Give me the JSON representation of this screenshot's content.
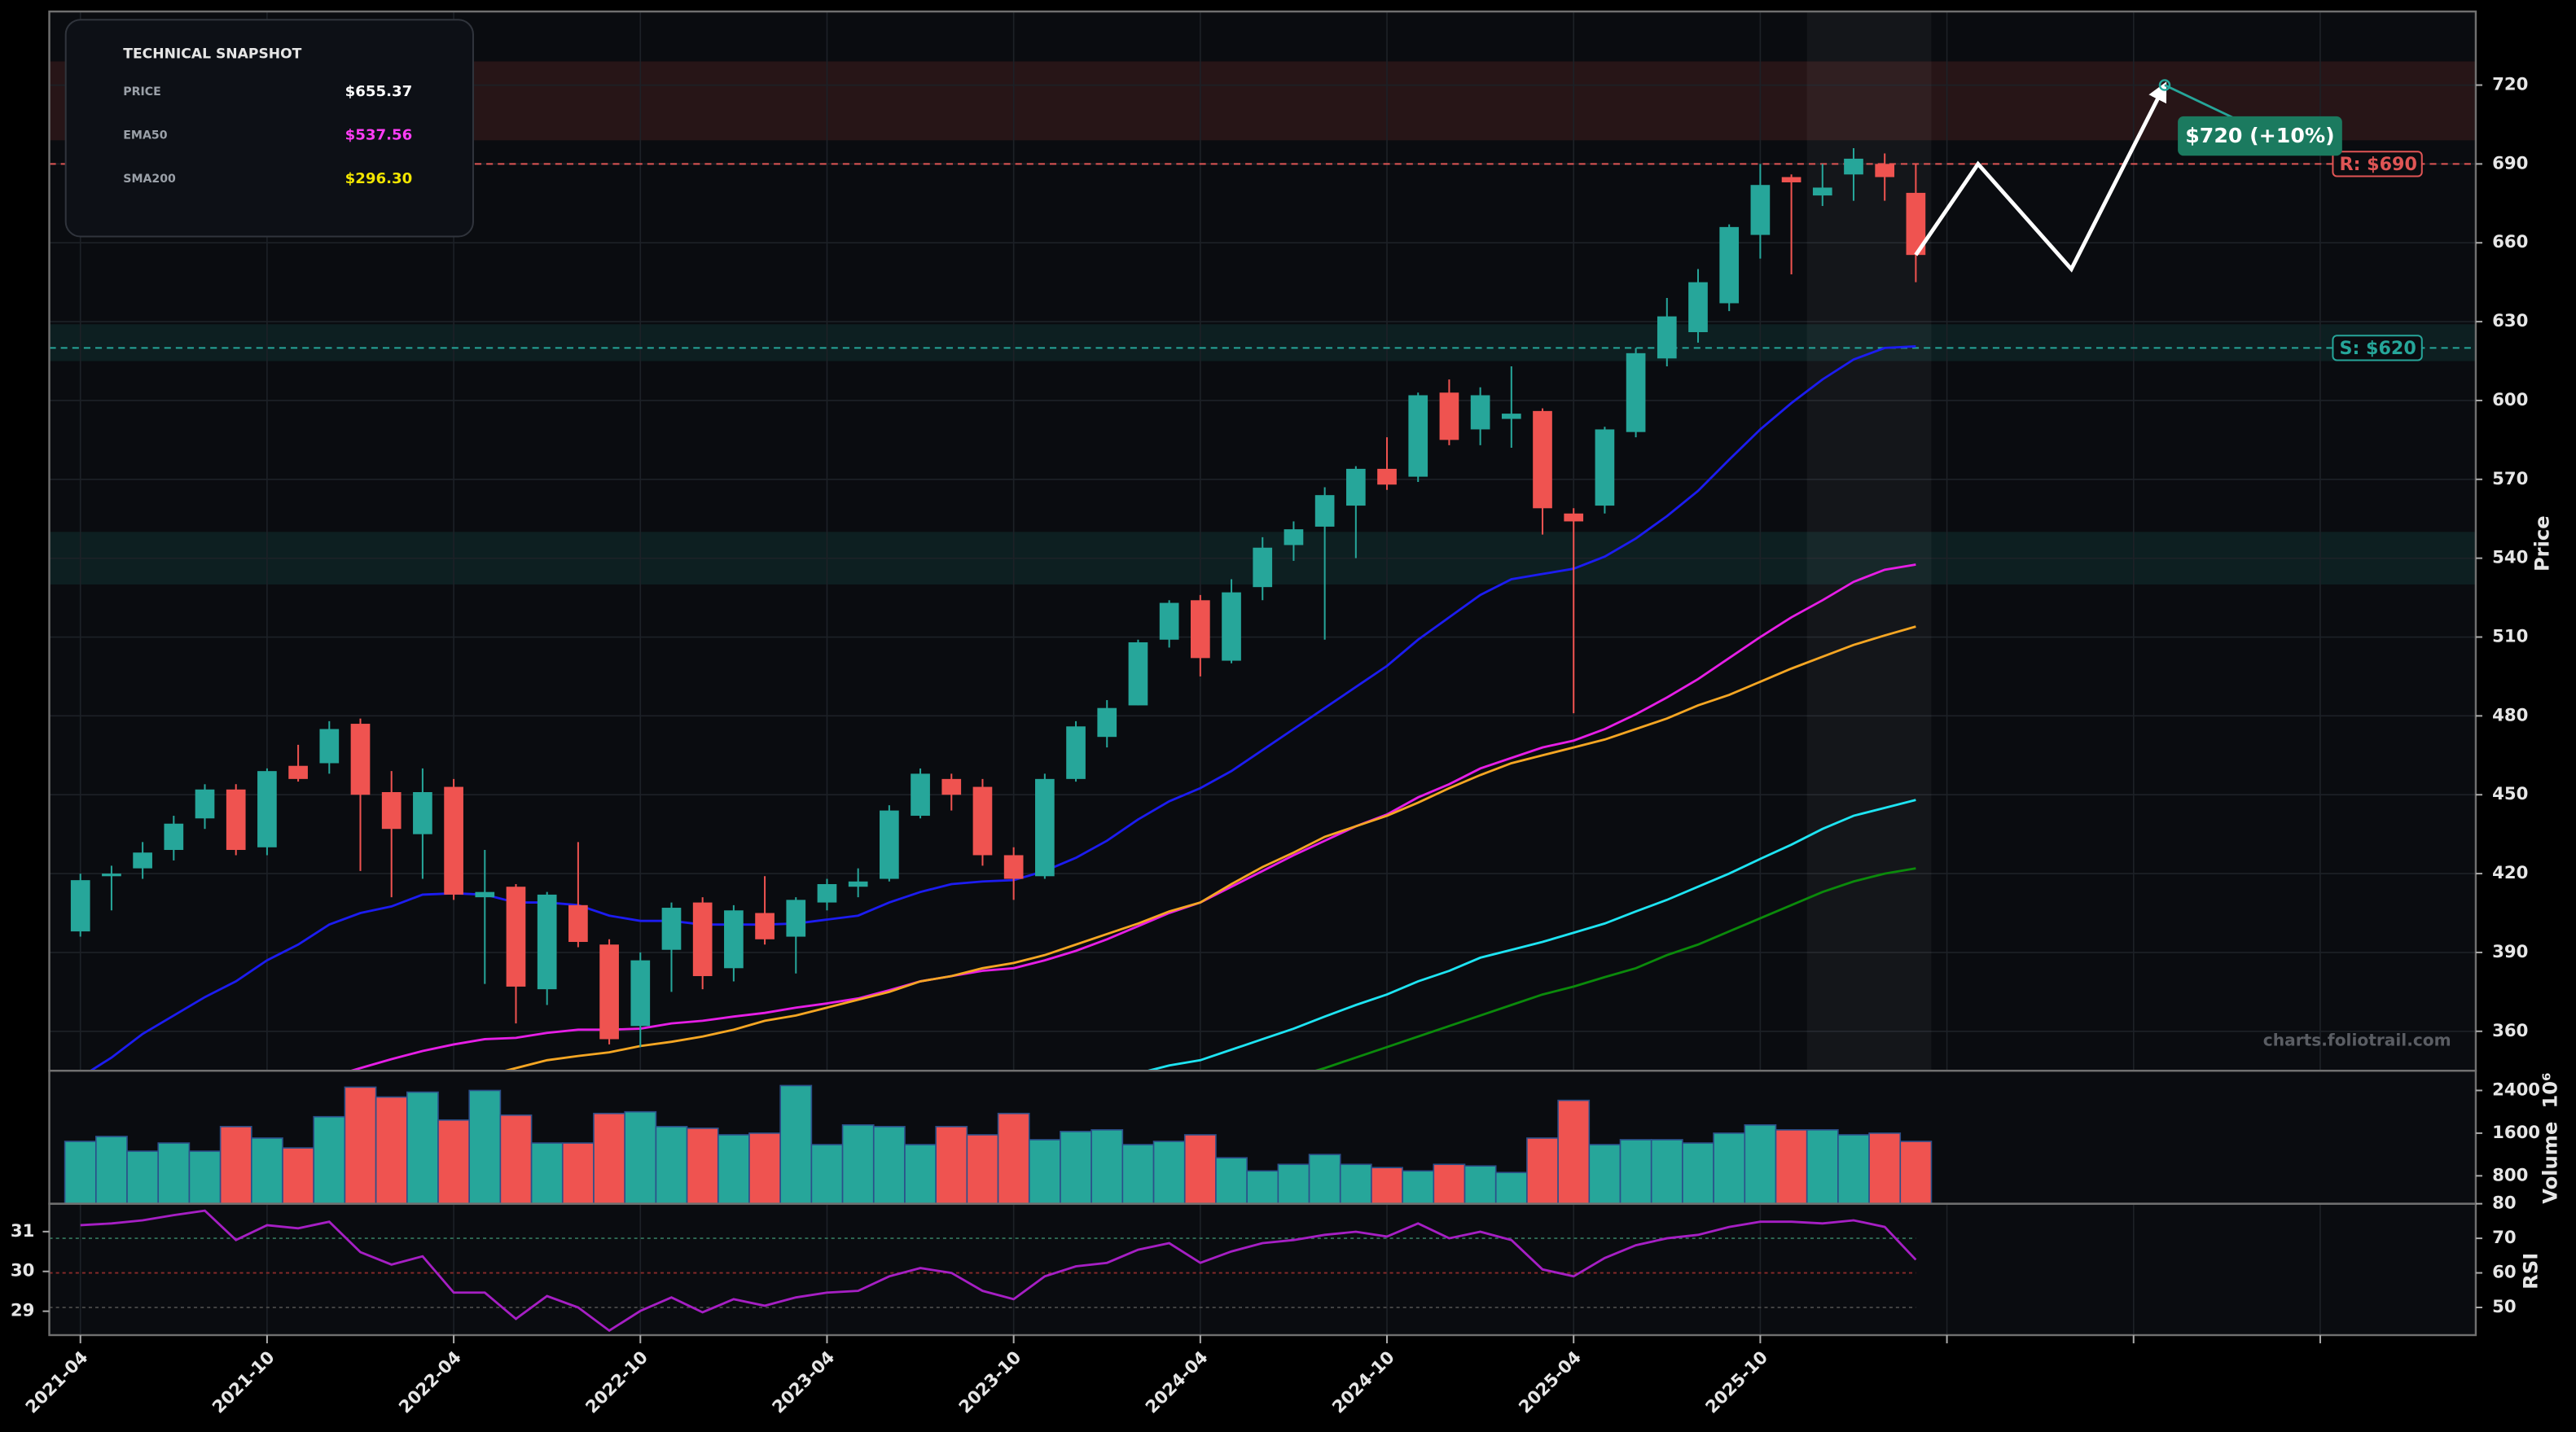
{
  "chart_data": {
    "type": "candlestick",
    "snapshot": {
      "title": "TECHNICAL SNAPSHOT",
      "rows": [
        {
          "label": "PRICE",
          "value": "$655.37",
          "color": "#ffffff"
        },
        {
          "label": "EMA50",
          "value": "$537.56",
          "color": "#ff3df5"
        },
        {
          "label": "SMA200",
          "value": "$296.30",
          "color": "#f2e500"
        }
      ]
    },
    "x": [
      "2021-04",
      "2021-05",
      "2021-06",
      "2021-07",
      "2021-08",
      "2021-09",
      "2021-10",
      "2021-11",
      "2021-12",
      "2022-01",
      "2022-02",
      "2022-03",
      "2022-04",
      "2022-05",
      "2022-06",
      "2022-07",
      "2022-08",
      "2022-09",
      "2022-10",
      "2022-11",
      "2022-12",
      "2023-01",
      "2023-02",
      "2023-03",
      "2023-04",
      "2023-05",
      "2023-06",
      "2023-07",
      "2023-08",
      "2023-09",
      "2023-10",
      "2023-11",
      "2023-12",
      "2024-01",
      "2024-02",
      "2024-03",
      "2024-04",
      "2024-05",
      "2024-06",
      "2024-07",
      "2024-08",
      "2024-09",
      "2024-10",
      "2024-11",
      "2024-12",
      "2025-01",
      "2025-02",
      "2025-03",
      "2025-04",
      "2025-05",
      "2025-06",
      "2025-07",
      "2025-08",
      "2025-09",
      "2025-10",
      "2025-11",
      "2025-12",
      "2026-01",
      "2026-02",
      "2026-03"
    ],
    "open": [
      398,
      419,
      422,
      429,
      441,
      452,
      430,
      461,
      462,
      477,
      451,
      435,
      453,
      411,
      415,
      376,
      408,
      393,
      362,
      391,
      409,
      384,
      405,
      396,
      409,
      415,
      418,
      442,
      456,
      453,
      427,
      419,
      456,
      472,
      484,
      509,
      524,
      501,
      529,
      545,
      552,
      560,
      574,
      571,
      603,
      589,
      593,
      596,
      557,
      560,
      588,
      616,
      626,
      637,
      663,
      685,
      678,
      686,
      690,
      679
    ],
    "high": [
      420,
      423,
      432,
      442,
      454,
      454,
      460,
      469,
      478,
      479,
      459,
      460,
      456,
      429,
      416,
      413,
      432,
      395,
      390,
      409,
      411,
      408,
      419,
      411,
      418,
      422,
      446,
      460,
      458,
      456,
      430,
      458,
      478,
      486,
      509,
      524,
      526,
      532,
      548,
      554,
      567,
      575,
      586,
      603,
      608,
      605,
      613,
      597,
      559,
      590,
      620,
      639,
      650,
      667,
      690,
      686,
      690,
      696,
      694,
      690
    ],
    "low": [
      396,
      406,
      418,
      425,
      437,
      427,
      427,
      455,
      458,
      421,
      411,
      418,
      410,
      378,
      363,
      370,
      392,
      355,
      354,
      375,
      376,
      379,
      393,
      382,
      406,
      411,
      417,
      441,
      444,
      423,
      410,
      418,
      455,
      468,
      484,
      506,
      495,
      500,
      524,
      539,
      509,
      540,
      566,
      569,
      583,
      583,
      582,
      549,
      481,
      557,
      586,
      613,
      622,
      634,
      654,
      648,
      674,
      676,
      676,
      645
    ],
    "close": [
      417.5,
      420,
      428,
      439,
      452,
      429,
      459,
      456,
      475,
      450,
      437,
      451,
      412,
      413,
      377,
      412,
      394,
      357,
      387,
      407,
      381,
      406,
      395,
      410,
      416,
      417,
      444,
      458,
      450,
      427,
      418,
      456,
      476,
      483,
      508,
      523,
      502,
      527,
      544,
      551,
      564,
      574,
      568,
      602,
      585,
      602,
      595,
      559,
      554,
      589,
      618,
      632,
      645,
      666,
      682,
      683,
      681,
      692,
      685,
      655.37
    ],
    "up_color": "#26a69a",
    "down_color": "#ef5350",
    "xlim": [
      "2021-03",
      "2027-09"
    ],
    "xticks": [
      "2021-04",
      "2021-10",
      "2022-04",
      "2022-10",
      "2023-04",
      "2023-10",
      "2024-04",
      "2024-10",
      "2025-04",
      "2025-10",
      {
        "value": "2026-04",
        "label": null
      },
      {
        "value": "2026-10",
        "label": null
      },
      {
        "value": "2027-04",
        "label": null
      }
    ],
    "ylim": [
      345,
      748
    ],
    "yticks": [
      360,
      390,
      420,
      450,
      480,
      510,
      540,
      570,
      600,
      630,
      660,
      690,
      720
    ],
    "ylabel": "Price",
    "grid": true,
    "overlays": [
      {
        "color": "#1c1cf0",
        "values": [
          342.5,
          350,
          359,
          366,
          373,
          379,
          387,
          393,
          400.6,
          405,
          407.5,
          412,
          412.5,
          412,
          409,
          409,
          408,
          404,
          402,
          402,
          400.6,
          400.6,
          400.6,
          401,
          402.5,
          404,
          409,
          413,
          416,
          417,
          417.5,
          421,
          426,
          432.5,
          440.6,
          447.5,
          452.5,
          459,
          467,
          475,
          483,
          491,
          499,
          509,
          517.5,
          526,
          532,
          534,
          536,
          540.6,
          547.5,
          556,
          565.6,
          577.5,
          589,
          599,
          608,
          615.6,
          620,
          620.6
        ]
      },
      {
        "color": "#e61ee6",
        "values": [
          null,
          null,
          null,
          null,
          null,
          null,
          null,
          null,
          342.5,
          346,
          349.4,
          352.5,
          355,
          357,
          357.5,
          359.4,
          360.6,
          360.6,
          361,
          363,
          364,
          365.6,
          367,
          369,
          370.6,
          372.5,
          375.6,
          379,
          381,
          383,
          384,
          387,
          390.6,
          395,
          400,
          405,
          409,
          415,
          421,
          427,
          432.5,
          438,
          442.5,
          449,
          454,
          460,
          464,
          468,
          470.6,
          475,
          480.6,
          487,
          494,
          502,
          510,
          517.5,
          524,
          531,
          535.6,
          537.56
        ]
      },
      {
        "color": "#f5a623",
        "values": [
          null,
          null,
          null,
          null,
          null,
          null,
          null,
          null,
          null,
          null,
          null,
          null,
          null,
          343,
          346,
          349,
          350.6,
          352,
          354.4,
          356,
          358,
          360.6,
          364,
          366,
          369,
          372,
          375,
          379,
          381,
          384,
          386,
          389,
          393,
          397,
          401,
          405.6,
          409,
          416,
          422.5,
          428,
          434,
          438,
          442,
          447,
          452.5,
          457.5,
          462,
          465,
          468,
          471,
          475,
          479,
          484,
          488,
          493,
          498,
          502.5,
          507,
          510.6,
          514
        ]
      },
      {
        "color": "#1ee4f2",
        "values": [
          null,
          null,
          null,
          null,
          null,
          null,
          null,
          null,
          null,
          null,
          null,
          null,
          null,
          null,
          null,
          null,
          null,
          null,
          null,
          null,
          null,
          null,
          null,
          null,
          null,
          null,
          null,
          null,
          null,
          null,
          null,
          null,
          null,
          null,
          344,
          347,
          349,
          353,
          357,
          361,
          365.6,
          370,
          374,
          379,
          383,
          388,
          391,
          394,
          397.5,
          401,
          405.6,
          410,
          415,
          420,
          425.6,
          431,
          437,
          442,
          445,
          448
        ]
      },
      {
        "color": "#0b8a0b",
        "values": [
          null,
          null,
          null,
          null,
          null,
          null,
          null,
          null,
          null,
          null,
          null,
          null,
          null,
          null,
          null,
          null,
          null,
          null,
          null,
          null,
          null,
          null,
          null,
          null,
          null,
          null,
          null,
          null,
          null,
          null,
          null,
          null,
          null,
          null,
          null,
          null,
          null,
          null,
          null,
          342.5,
          346,
          350,
          354,
          358,
          362,
          366,
          370,
          374,
          377,
          380.6,
          384,
          389,
          393,
          398,
          403,
          408,
          413,
          417,
          420,
          422
        ]
      }
    ],
    "zones": [
      {
        "range": [
          699,
          729
        ],
        "color": "#ef5350"
      },
      {
        "range": [
          615,
          629
        ],
        "color": "#26a69a"
      },
      {
        "range": [
          530,
          550
        ],
        "color": "#26a69a"
      }
    ],
    "levels": [
      {
        "value": 690,
        "label": "R: $690",
        "color": "#e05555"
      },
      {
        "value": 620,
        "label": "S: $620",
        "color": "#26a69a"
      }
    ],
    "highlight": [
      "2025-12",
      "2026-03"
    ],
    "forecast": {
      "x": [
        "2026-03",
        "2026-05",
        "2026-08",
        "2026-11"
      ],
      "values": [
        655.37,
        690,
        650,
        720
      ],
      "label": "$720 (+10%)",
      "color": "#ffffff",
      "box_color": "#1b7a5f"
    },
    "watermark": "charts.foliotrail.com",
    "volume": {
      "values": [
        1446,
        1538,
        1262,
        1415,
        1262,
        1723,
        1508,
        1323,
        1908,
        2462,
        2277,
        2369,
        1846,
        2400,
        1938,
        1415,
        1415,
        1969,
        2000,
        1723,
        1692,
        1569,
        1600,
        2492,
        1385,
        1754,
        1723,
        1385,
        1723,
        1569,
        1969,
        1477,
        1631,
        1662,
        1385,
        1446,
        1569,
        1138,
        892,
        1015,
        1200,
        1015,
        954,
        892,
        1015,
        985,
        862,
        1508,
        2215,
        1385,
        1477,
        1477,
        1415,
        1600,
        1754,
        1662,
        1662,
        1569,
        1600,
        1446
      ],
      "ylim": [
        277,
        2770
      ],
      "yticks": [
        800,
        1600,
        2400
      ],
      "ylabel": "Volume",
      "offset_label": "10⁶",
      "edge_color": "#2b4f8a"
    },
    "rsi": {
      "values": [
        73.8,
        74.3,
        75.2,
        76.7,
        78,
        69.5,
        73.8,
        72.9,
        74.8,
        66,
        62.4,
        64.8,
        54.3,
        54.3,
        46.7,
        53.3,
        50,
        43.3,
        49,
        52.9,
        48.6,
        52.4,
        50.5,
        52.9,
        54.3,
        54.8,
        59,
        61.4,
        60,
        54.8,
        52.4,
        59,
        61.9,
        62.9,
        66.7,
        68.6,
        62.9,
        66.2,
        68.6,
        69.5,
        71,
        71.9,
        70.5,
        74.3,
        70,
        71.9,
        69.5,
        61,
        59,
        64.3,
        68,
        70,
        71,
        73.3,
        74.8,
        74.8,
        74.3,
        75.2,
        73.3,
        63.8
      ],
      "color": "#a61fc4",
      "ylim": [
        42,
        80
      ],
      "yticks": [
        50,
        60,
        70,
        80
      ],
      "y2lim": [
        28.4,
        31.7
      ],
      "y2ticks": [
        29,
        30,
        31
      ],
      "ylabel": "RSI",
      "levels": [
        {
          "value": 70,
          "color": "#2f6b55"
        },
        {
          "value": 60,
          "color": "#8b2a2a"
        },
        {
          "value": 50,
          "color": "#4a4a4a"
        }
      ]
    }
  }
}
